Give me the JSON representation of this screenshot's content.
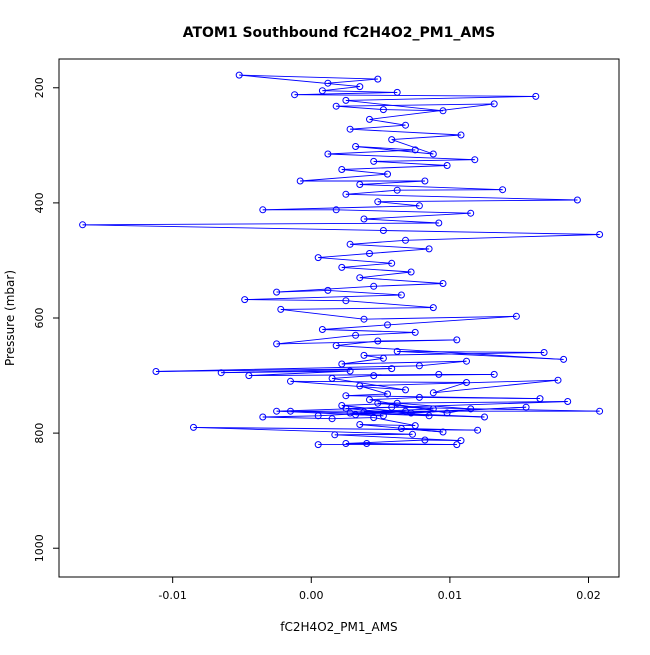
{
  "chart_data": {
    "type": "line",
    "title": "ATOM1 Southbound fC2H4O2_PM1_AMS",
    "xlabel": "fC2H4O2_PM1_AMS",
    "ylabel": "Pressure (mbar)",
    "xlim": [
      -0.0182,
      0.0222
    ],
    "ylim": [
      1050,
      150
    ],
    "y_reversed": true,
    "xticks": [
      -0.01,
      0.0,
      0.01,
      0.02
    ],
    "xtick_labels": [
      "-0.01",
      "0.00",
      "0.01",
      "0.02"
    ],
    "yticks": [
      200,
      400,
      600,
      800,
      1000
    ],
    "ytick_labels": [
      "200",
      "400",
      "600",
      "800",
      "1000"
    ],
    "grid": false,
    "legend": "none",
    "series_color": "#0000ff",
    "marker": "open-circle",
    "series": [
      {
        "points": [
          [
            0.0005,
            820
          ],
          [
            0.0105,
            820
          ],
          [
            0.004,
            818
          ],
          [
            0.0025,
            818
          ],
          [
            0.0082,
            812
          ],
          [
            0.0108,
            813
          ],
          [
            0.0017,
            803
          ],
          [
            0.0073,
            802
          ],
          [
            -0.0085,
            790
          ],
          [
            0.012,
            795
          ],
          [
            0.0065,
            792
          ],
          [
            0.0095,
            798
          ],
          [
            0.0035,
            785
          ],
          [
            0.0075,
            787
          ],
          [
            0.0045,
            773
          ],
          [
            0.0015,
            775
          ],
          [
            -0.0035,
            772
          ],
          [
            0.0005,
            770
          ],
          [
            0.0068,
            762
          ],
          [
            0.0028,
            765
          ],
          [
            0.0085,
            770
          ],
          [
            0.0025,
            757
          ],
          [
            0.0058,
            755
          ],
          [
            0.0208,
            762
          ],
          [
            -0.0015,
            762
          ],
          [
            0.0125,
            772
          ],
          [
            0.0038,
            763
          ],
          [
            0.0088,
            758
          ],
          [
            0.0048,
            748
          ],
          [
            0.0185,
            745
          ],
          [
            -0.0025,
            762
          ],
          [
            0.0052,
            770
          ],
          [
            0.0032,
            768
          ],
          [
            0.0155,
            755
          ],
          [
            0.0072,
            765
          ],
          [
            0.0022,
            752
          ],
          [
            0.0062,
            748
          ],
          [
            0.0115,
            758
          ],
          [
            0.0098,
            765
          ],
          [
            0.0042,
            742
          ],
          [
            0.0078,
            738
          ],
          [
            0.0165,
            740
          ],
          [
            0.0025,
            735
          ],
          [
            0.0055,
            732
          ],
          [
            0.0035,
            718
          ],
          [
            0.0178,
            708
          ],
          [
            0.0088,
            730
          ],
          [
            0.0112,
            712
          ],
          [
            -0.0015,
            710
          ],
          [
            0.0068,
            725
          ],
          [
            0.0015,
            705
          ],
          [
            0.0045,
            700
          ],
          [
            0.0132,
            698
          ],
          [
            0.0092,
            698
          ],
          [
            -0.0045,
            700
          ],
          [
            0.0028,
            692
          ],
          [
            -0.0065,
            695
          ],
          [
            0.0058,
            688
          ],
          [
            -0.0112,
            693
          ],
          [
            0.0078,
            683
          ],
          [
            0.0112,
            675
          ],
          [
            0.0022,
            680
          ],
          [
            0.0052,
            670
          ],
          [
            0.0038,
            665
          ],
          [
            0.0168,
            660
          ],
          [
            0.0062,
            658
          ],
          [
            0.0182,
            672
          ],
          [
            0.0018,
            648
          ],
          [
            0.0048,
            640
          ],
          [
            0.0105,
            638
          ],
          [
            -0.0025,
            645
          ],
          [
            0.0032,
            630
          ],
          [
            0.0075,
            625
          ],
          [
            0.0008,
            620
          ],
          [
            0.0055,
            612
          ],
          [
            0.0148,
            597
          ],
          [
            0.0038,
            602
          ],
          [
            -0.0022,
            585
          ],
          [
            0.0088,
            582
          ],
          [
            0.0025,
            570
          ],
          [
            -0.0048,
            568
          ],
          [
            0.0065,
            560
          ],
          [
            0.0012,
            552
          ],
          [
            -0.0025,
            555
          ],
          [
            0.0045,
            545
          ],
          [
            0.0095,
            540
          ],
          [
            0.0035,
            530
          ],
          [
            0.0072,
            520
          ],
          [
            0.0022,
            512
          ],
          [
            0.0058,
            505
          ],
          [
            0.0005,
            495
          ],
          [
            0.0042,
            488
          ],
          [
            0.0085,
            480
          ],
          [
            0.0028,
            472
          ],
          [
            0.0068,
            465
          ],
          [
            0.0208,
            455
          ],
          [
            0.0052,
            448
          ],
          [
            -0.0165,
            438
          ],
          [
            0.0092,
            435
          ],
          [
            0.0038,
            428
          ],
          [
            0.0115,
            418
          ],
          [
            0.0018,
            412
          ],
          [
            -0.0035,
            412
          ],
          [
            0.0078,
            405
          ],
          [
            0.0048,
            398
          ],
          [
            0.0192,
            395
          ],
          [
            0.0025,
            385
          ],
          [
            0.0062,
            378
          ],
          [
            0.0138,
            377
          ],
          [
            0.0035,
            368
          ],
          [
            0.0082,
            362
          ],
          [
            -0.0008,
            362
          ],
          [
            0.0055,
            350
          ],
          [
            0.0022,
            342
          ],
          [
            0.0098,
            335
          ],
          [
            0.0045,
            328
          ],
          [
            0.0118,
            325
          ],
          [
            0.0012,
            315
          ],
          [
            0.0075,
            308
          ],
          [
            0.0032,
            302
          ],
          [
            0.0088,
            315
          ],
          [
            0.0058,
            290
          ],
          [
            0.0108,
            282
          ],
          [
            0.0028,
            272
          ],
          [
            0.0068,
            265
          ],
          [
            0.0042,
            255
          ],
          [
            0.0132,
            228
          ],
          [
            0.0018,
            232
          ],
          [
            0.0052,
            238
          ],
          [
            0.0095,
            240
          ],
          [
            0.0025,
            222
          ],
          [
            0.0162,
            215
          ],
          [
            -0.0012,
            212
          ],
          [
            0.0062,
            208
          ],
          [
            0.0008,
            205
          ],
          [
            0.0035,
            198
          ],
          [
            -0.0052,
            178
          ],
          [
            0.0048,
            185
          ],
          [
            0.0012,
            192
          ]
        ]
      }
    ]
  }
}
